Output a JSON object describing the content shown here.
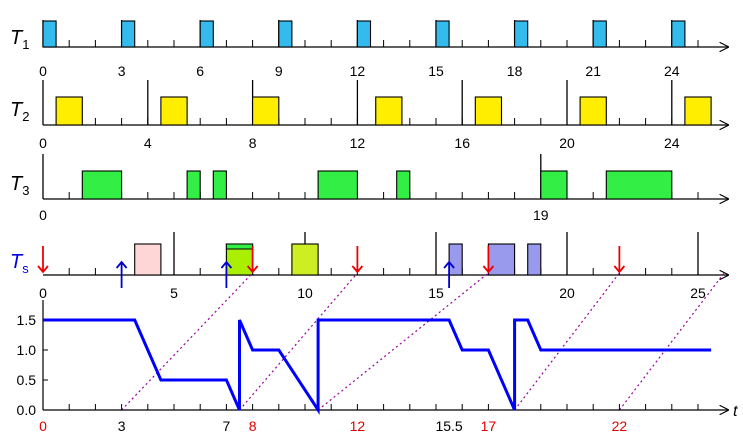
{
  "colors": {
    "t1_fill": "#33bbee",
    "t2_fill": "#ffee00",
    "t3_fill": "#33ee44",
    "ts_pink": "#ffd6d6",
    "ts_lime": "#aaee00",
    "ts_lime2": "#ccee22",
    "ts_purple": "#9999ee",
    "ts_label": "#0000dd",
    "red": "#ee0000",
    "blue_arrow": "#0000cc",
    "budget_line": "#0000ff",
    "dotted": "#990099"
  },
  "rows": {
    "t1": {
      "label": "T",
      "sub": "1",
      "ticks": [
        "0",
        "3",
        "6",
        "9",
        "12",
        "15",
        "18",
        "21",
        "24"
      ]
    },
    "t2": {
      "label": "T",
      "sub": "2",
      "ticks": [
        "0",
        "4",
        "8",
        "12",
        "16",
        "20",
        "24"
      ]
    },
    "t3": {
      "label": "T",
      "sub": "3",
      "ticks": [
        "0",
        "19"
      ]
    },
    "ts": {
      "label": "T",
      "sub": "s",
      "ticks": [
        "0",
        "5",
        "10",
        "15",
        "20",
        "25"
      ]
    }
  },
  "budget": {
    "y_ticks": [
      "1.5",
      "1.0",
      "0.5",
      "0.0"
    ],
    "x_labels_black": [
      "3",
      "7",
      "15.5"
    ],
    "x_labels_red": [
      "0",
      "8",
      "12",
      "17",
      "22"
    ],
    "axis_label": "t"
  }
}
